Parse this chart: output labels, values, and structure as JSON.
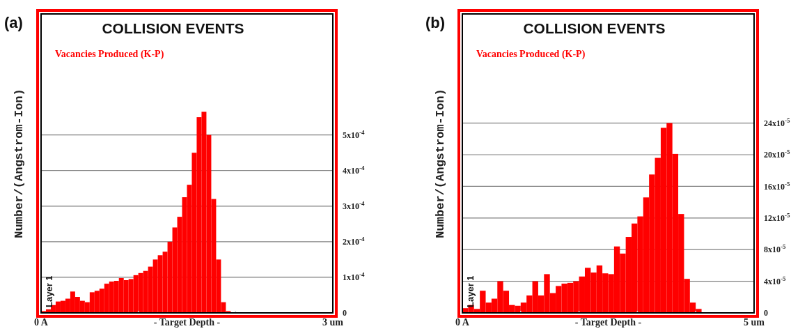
{
  "chart_data": [
    {
      "type": "histogram",
      "title": "COLLISION EVENTS",
      "xlabel": "- Target Depth -",
      "ylabel": "Number/(Angstrom-Ion)",
      "annotations": [
        "(a)",
        "Layer 1"
      ],
      "bins": [
        0,
        0.05,
        0.1,
        0.15,
        0.2,
        0.25,
        0.3,
        0.35,
        0.4,
        0.45,
        0.5,
        0.55,
        0.6,
        0.65,
        0.7,
        0.75,
        0.8,
        0.85,
        0.9,
        0.95,
        1,
        1.05,
        1.1,
        1.15,
        1.2,
        1.25,
        1.3,
        1.35,
        1.4,
        1.45,
        1.5,
        1.55,
        1.6,
        1.65,
        1.7,
        1.75,
        1.8,
        1.85,
        1.9,
        1.95,
        2,
        2.05,
        2.1,
        2.15,
        2.2,
        2.25,
        2.3,
        2.35,
        2.4,
        2.45,
        2.5,
        2.55,
        2.6,
        2.65,
        2.7,
        2.75,
        2.8,
        2.85,
        2.9,
        2.95,
        3
      ],
      "series": [
        {
          "name": "Vacancies Produced (K-P)",
          "color": "#ff0000",
          "values": [
            5e-06,
            1e-05,
            2.2e-05,
            3.2e-05,
            3.4e-05,
            4e-05,
            6e-05,
            4.5e-05,
            3.4e-05,
            3e-05,
            5.8e-05,
            6.2e-05,
            6.8e-05,
            8.2e-05,
            8.8e-05,
            9e-05,
            9.8e-05,
            9.2e-05,
            9.5e-05,
            0.000106,
            0.000112,
            0.000118,
            0.00013,
            0.00015,
            0.000162,
            0.000172,
            0.0002,
            0.00024,
            0.00027,
            0.000325,
            0.00036,
            0.00045,
            0.00055,
            0.000565,
            0.0005,
            0.00032,
            0.00015,
            3e-05,
            5e-06,
            0,
            0,
            0,
            0,
            0,
            0,
            0,
            0,
            0,
            0,
            0,
            0,
            0,
            0,
            0,
            0,
            0,
            0,
            0,
            0,
            0
          ]
        }
      ],
      "xlim": [
        0,
        3
      ],
      "xticks": [
        {
          "value": 0,
          "label": "0 A"
        },
        {
          "value": 1,
          "label": null
        },
        {
          "value": 2,
          "label": null
        },
        {
          "value": 3,
          "label": "3 um"
        }
      ],
      "ylim": [
        0,
        0.00084
      ],
      "yticks": [
        {
          "value": 0,
          "label": "0"
        },
        {
          "value": 0.0001,
          "label": "1x10$^{-4}$"
        },
        {
          "value": 0.0002,
          "label": "2x10$^{-4}$"
        },
        {
          "value": 0.0003,
          "label": "3x10$^{-4}$"
        },
        {
          "value": 0.0004,
          "label": "4x10$^{-4}$"
        },
        {
          "value": 0.0005,
          "label": "5x10$^{-4}$"
        }
      ],
      "grid": "y",
      "legend": "top left"
    },
    {
      "type": "histogram",
      "title": "COLLISION EVENTS",
      "xlabel": "- Target Depth -",
      "ylabel": "Number/(Angstrom-Ion)",
      "annotations": [
        "(b)",
        "Layer 1"
      ],
      "bins": [
        0,
        0.1,
        0.2,
        0.3,
        0.4,
        0.5,
        0.6,
        0.7,
        0.8,
        0.9,
        1,
        1.1,
        1.2,
        1.3,
        1.4,
        1.5,
        1.6,
        1.7,
        1.8,
        1.9,
        2,
        2.1,
        2.2,
        2.3,
        2.4,
        2.5,
        2.6,
        2.7,
        2.8,
        2.9,
        3,
        3.1,
        3.2,
        3.3,
        3.4,
        3.5,
        3.6,
        3.7,
        3.8,
        3.9,
        4,
        4.1,
        4.2,
        4.3,
        4.4,
        4.5,
        4.6,
        4.7,
        4.8,
        4.9,
        5
      ],
      "series": [
        {
          "name": "Vacancies Produced (K-P)",
          "color": "#ff0000",
          "values": [
            6e-06,
            1e-05,
            5e-06,
            2.8e-05,
            1.3e-05,
            1.8e-05,
            4e-05,
            2.8e-05,
            1e-05,
            9e-06,
            1.3e-05,
            2.2e-05,
            4e-05,
            2.2e-05,
            4.9e-05,
            2.5e-05,
            3.4e-05,
            3.7e-05,
            3.8e-05,
            4e-05,
            4.6e-05,
            5.7e-05,
            5.1e-05,
            6e-05,
            5e-05,
            4.9e-05,
            8.4e-05,
            7.5e-05,
            9.6e-05,
            0.000113,
            0.000122,
            0.000146,
            0.000175,
            0.000196,
            0.000234,
            0.00024,
            0.000201,
            0.000125,
            4.3e-05,
            1.3e-05,
            5e-06,
            0,
            0,
            0,
            0,
            0,
            0,
            0,
            0,
            0
          ]
        }
      ],
      "xlim": [
        0,
        5
      ],
      "xticks": [
        {
          "value": 0,
          "label": "0 A"
        },
        {
          "value": 1,
          "label": null
        },
        {
          "value": 2,
          "label": null
        },
        {
          "value": 3,
          "label": null
        },
        {
          "value": 4,
          "label": null
        },
        {
          "value": 5,
          "label": "5 um"
        }
      ],
      "ylim": [
        0,
        0.000378
      ],
      "yticks": [
        {
          "value": 0,
          "label": "0"
        },
        {
          "value": 4e-05,
          "label": "4x10$^{-5}$"
        },
        {
          "value": 8e-05,
          "label": "8x10$^{-5}$"
        },
        {
          "value": 0.00012,
          "label": "12x10$^{-5}$"
        },
        {
          "value": 0.00016,
          "label": "16x10$^{-5}$"
        },
        {
          "value": 0.0002,
          "label": "20x10$^{-5}$"
        },
        {
          "value": 0.00024,
          "label": "24x10$^{-5}$"
        }
      ],
      "grid": "y",
      "legend": "top left"
    }
  ]
}
